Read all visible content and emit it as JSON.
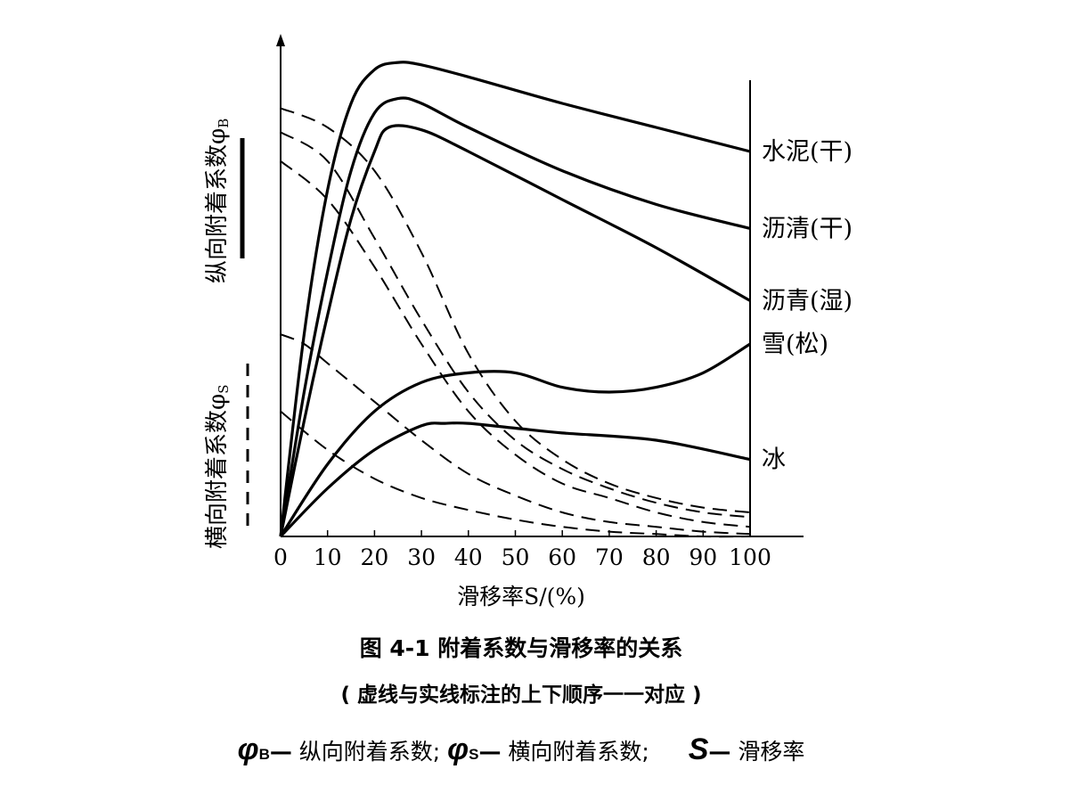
{
  "chart_data": {
    "type": "line",
    "x_ticks": [
      0,
      10,
      20,
      30,
      40,
      50,
      60,
      70,
      80,
      90,
      100
    ],
    "xlim": [
      0,
      100
    ],
    "ylim": [
      0,
      1
    ],
    "xlabel": "滑移率S/(%)",
    "ylabel_longitudinal": {
      "text": "纵向附着系数φ",
      "sub": "B"
    },
    "ylabel_lateral": {
      "text": "横向附着系数φ",
      "sub": "S"
    },
    "grid": false,
    "surfaces": [
      "水泥(干)",
      "沥清(干)",
      "沥青(湿)",
      "雪(松)",
      "冰"
    ],
    "longitudinal_solid": [
      {
        "name": "水泥(干)",
        "x": [
          0,
          5,
          10,
          15,
          20,
          25,
          30,
          40,
          60,
          80,
          100
        ],
        "y": [
          0,
          0.42,
          0.72,
          0.9,
          0.97,
          0.985,
          0.98,
          0.955,
          0.9,
          0.85,
          0.8
        ]
      },
      {
        "name": "沥清(干)",
        "x": [
          0,
          5,
          10,
          15,
          20,
          25,
          30,
          40,
          60,
          80,
          100
        ],
        "y": [
          0,
          0.3,
          0.55,
          0.76,
          0.88,
          0.91,
          0.9,
          0.85,
          0.76,
          0.69,
          0.64
        ]
      },
      {
        "name": "沥青(湿)",
        "x": [
          0,
          5,
          10,
          15,
          20,
          23,
          30,
          40,
          60,
          80,
          100
        ],
        "y": [
          0,
          0.24,
          0.46,
          0.66,
          0.8,
          0.85,
          0.845,
          0.8,
          0.7,
          0.6,
          0.49
        ]
      },
      {
        "name": "雪(松)",
        "x": [
          0,
          10,
          20,
          30,
          40,
          50,
          60,
          70,
          80,
          90,
          100
        ],
        "y": [
          0,
          0.15,
          0.26,
          0.32,
          0.34,
          0.34,
          0.31,
          0.3,
          0.31,
          0.34,
          0.4
        ]
      },
      {
        "name": "冰",
        "x": [
          0,
          10,
          20,
          30,
          35,
          40,
          50,
          60,
          80,
          100
        ],
        "y": [
          0,
          0.1,
          0.18,
          0.23,
          0.235,
          0.235,
          0.225,
          0.215,
          0.2,
          0.16
        ]
      }
    ],
    "lateral_dashed": [
      {
        "name": "水泥(干)",
        "x": [
          0,
          10,
          20,
          30,
          40,
          50,
          60,
          70,
          80,
          90,
          100
        ],
        "y": [
          0.89,
          0.85,
          0.76,
          0.59,
          0.38,
          0.24,
          0.16,
          0.11,
          0.08,
          0.06,
          0.05
        ]
      },
      {
        "name": "沥清(干)",
        "x": [
          0,
          10,
          20,
          30,
          40,
          50,
          60,
          70,
          80,
          90,
          100
        ],
        "y": [
          0.84,
          0.78,
          0.62,
          0.45,
          0.3,
          0.2,
          0.14,
          0.1,
          0.07,
          0.05,
          0.04
        ]
      },
      {
        "name": "沥青(湿)",
        "x": [
          0,
          10,
          20,
          30,
          40,
          50,
          60,
          70,
          80,
          90,
          100
        ],
        "y": [
          0.78,
          0.7,
          0.56,
          0.4,
          0.26,
          0.17,
          0.11,
          0.08,
          0.05,
          0.03,
          0.02
        ]
      },
      {
        "name": "雪(松)",
        "x": [
          0,
          5,
          10,
          20,
          30,
          40,
          50,
          60,
          70,
          80,
          90,
          100
        ],
        "y": [
          0.42,
          0.4,
          0.36,
          0.28,
          0.2,
          0.13,
          0.085,
          0.05,
          0.03,
          0.02,
          0.01,
          0.005
        ]
      },
      {
        "name": "冰",
        "x": [
          0,
          10,
          20,
          30,
          40,
          50,
          60,
          70,
          80,
          90,
          100
        ],
        "y": [
          0.26,
          0.18,
          0.12,
          0.08,
          0.055,
          0.035,
          0.02,
          0.01,
          0.005,
          0.0,
          0.0
        ]
      }
    ]
  },
  "caption": {
    "title": "图 4-1   附着系数与滑移率的关系",
    "note": "( 虚线与实线标注的上下顺序一一对应 )"
  },
  "legend": {
    "phi": "φ",
    "b": "B",
    "s": "S",
    "dash": "—",
    "b_desc": " 纵向附着系数;",
    "s_desc": " 横向附着系数;",
    "S": "S",
    "S_desc": " 滑移率"
  }
}
